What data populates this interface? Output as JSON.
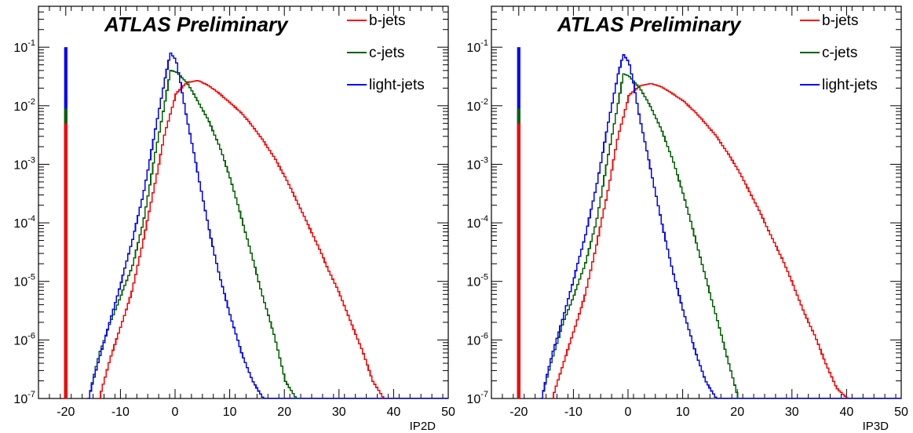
{
  "colors": {
    "b": "#ff0000",
    "c": "#006400",
    "light": "#0000ff"
  },
  "chart_data": [
    {
      "type": "line",
      "title": "ATLAS Preliminary",
      "xlabel": "IP2D",
      "ylabel": "",
      "xlim": [
        -25,
        50
      ],
      "ylim": [
        1e-07,
        0.5
      ],
      "ylog": true,
      "grid": false,
      "legend_position": "top-right",
      "x_ticks": [
        "-20",
        "-10",
        "0",
        "10",
        "20",
        "30",
        "40",
        "50"
      ],
      "y_ticks": [
        {
          "base": "10",
          "exp": "-7"
        },
        {
          "base": "10",
          "exp": "-6"
        },
        {
          "base": "10",
          "exp": "-5"
        },
        {
          "base": "10",
          "exp": "-4"
        },
        {
          "base": "10",
          "exp": "-3"
        },
        {
          "base": "10",
          "exp": "-2"
        },
        {
          "base": "10",
          "exp": "-1"
        }
      ],
      "spike": {
        "x": -20,
        "values": {
          "b": 0.005,
          "c": 0.009,
          "light": 0.1
        }
      },
      "series": [
        {
          "name": "b-jets",
          "key": "b",
          "x": [
            -14,
            -12,
            -10,
            -8,
            -6,
            -4,
            -2,
            0,
            2,
            4,
            6,
            8,
            10,
            12,
            14,
            16,
            18,
            20,
            22,
            24,
            26,
            28,
            30,
            32,
            34,
            36,
            38,
            40,
            42,
            44,
            46,
            48,
            50
          ],
          "values": [
            1e-07,
            5e-07,
            1.8e-06,
            7e-06,
            5e-05,
            0.0004,
            0.0035,
            0.016,
            0.025,
            0.027,
            0.022,
            0.016,
            0.011,
            0.0075,
            0.0045,
            0.0025,
            0.0013,
            0.0006,
            0.00025,
            0.0001,
            4e-05,
            1.5e-05,
            6e-06,
            2e-06,
            7e-07,
            2e-07,
            1e-07,
            1e-07,
            1e-07,
            1e-07,
            1e-07,
            1e-07,
            1e-07
          ]
        },
        {
          "name": "c-jets",
          "key": "c",
          "x": [
            -16,
            -14,
            -12,
            -10,
            -8,
            -6,
            -4,
            -2,
            -1,
            0,
            2,
            4,
            6,
            8,
            10,
            12,
            14,
            16,
            18,
            20,
            22,
            24,
            50
          ],
          "values": [
            1e-07,
            6e-07,
            2e-06,
            6e-06,
            1.8e-05,
            0.0001,
            0.0012,
            0.012,
            0.04,
            0.038,
            0.025,
            0.012,
            0.0055,
            0.002,
            0.00055,
            0.00012,
            2.5e-05,
            5e-06,
            1.2e-06,
            2e-07,
            1e-07,
            1e-07,
            1e-07
          ]
        },
        {
          "name": "light-jets",
          "key": "light",
          "x": [
            -16,
            -14,
            -12,
            -10,
            -8,
            -6,
            -4,
            -2,
            -1,
            0,
            1,
            2,
            4,
            6,
            8,
            10,
            12,
            14,
            16,
            50
          ],
          "values": [
            1e-07,
            5e-07,
            2.2e-06,
            1e-05,
            5e-05,
            0.0003,
            0.003,
            0.03,
            0.08,
            0.06,
            0.02,
            0.006,
            0.0007,
            8e-05,
            1.2e-05,
            2.5e-06,
            6e-07,
            2e-07,
            1e-07,
            1e-07
          ]
        }
      ]
    },
    {
      "type": "line",
      "title": "ATLAS Preliminary",
      "xlabel": "IP3D",
      "ylabel": "",
      "xlim": [
        -25,
        50
      ],
      "ylim": [
        1e-07,
        0.5
      ],
      "ylog": true,
      "grid": false,
      "legend_position": "top-right",
      "x_ticks": [
        "-20",
        "-10",
        "0",
        "10",
        "20",
        "30",
        "40",
        "50"
      ],
      "y_ticks": [
        {
          "base": "10",
          "exp": "-7"
        },
        {
          "base": "10",
          "exp": "-6"
        },
        {
          "base": "10",
          "exp": "-5"
        },
        {
          "base": "10",
          "exp": "-4"
        },
        {
          "base": "10",
          "exp": "-3"
        },
        {
          "base": "10",
          "exp": "-2"
        },
        {
          "base": "10",
          "exp": "-1"
        }
      ],
      "spike": {
        "x": -20,
        "values": {
          "b": 0.005,
          "c": 0.009,
          "light": 0.1
        }
      },
      "series": [
        {
          "name": "b-jets",
          "key": "b",
          "x": [
            -14,
            -12,
            -10,
            -8,
            -6,
            -4,
            -2,
            0,
            2,
            4,
            6,
            8,
            10,
            12,
            14,
            16,
            18,
            20,
            22,
            24,
            26,
            28,
            30,
            32,
            34,
            36,
            38,
            40,
            42,
            44,
            46,
            48,
            50
          ],
          "values": [
            1e-07,
            4e-07,
            1.5e-06,
            6e-06,
            4e-05,
            0.0003,
            0.003,
            0.015,
            0.022,
            0.024,
            0.021,
            0.016,
            0.012,
            0.008,
            0.005,
            0.003,
            0.0016,
            0.0008,
            0.00035,
            0.00015,
            6e-05,
            2.5e-05,
            9e-06,
            3e-06,
            1.2e-06,
            4e-07,
            1.5e-07,
            1e-07,
            1e-07,
            1e-07,
            1e-07,
            1e-07,
            1e-07
          ]
        },
        {
          "name": "c-jets",
          "key": "c",
          "x": [
            -16,
            -14,
            -12,
            -10,
            -8,
            -6,
            -4,
            -2,
            -1,
            0,
            2,
            4,
            6,
            8,
            10,
            12,
            14,
            16,
            18,
            20,
            22,
            50
          ],
          "values": [
            1e-07,
            5e-07,
            2e-06,
            6e-06,
            2e-05,
            0.0001,
            0.0011,
            0.011,
            0.035,
            0.032,
            0.02,
            0.0095,
            0.0038,
            0.0012,
            0.0003,
            6e-05,
            1.2e-05,
            2.5e-06,
            5e-07,
            1e-07,
            1e-07,
            1e-07
          ]
        },
        {
          "name": "light-jets",
          "key": "light",
          "x": [
            -16,
            -14,
            -12,
            -10,
            -8,
            -6,
            -4,
            -2,
            -1,
            0,
            1,
            2,
            4,
            6,
            8,
            10,
            12,
            14,
            16,
            50
          ],
          "values": [
            1e-07,
            6e-07,
            2.5e-06,
            1.2e-05,
            6e-05,
            0.0004,
            0.004,
            0.035,
            0.075,
            0.055,
            0.02,
            0.006,
            0.0008,
            0.0001,
            1.5e-05,
            3e-06,
            7e-07,
            2e-07,
            1e-07,
            1e-07
          ]
        }
      ]
    }
  ]
}
